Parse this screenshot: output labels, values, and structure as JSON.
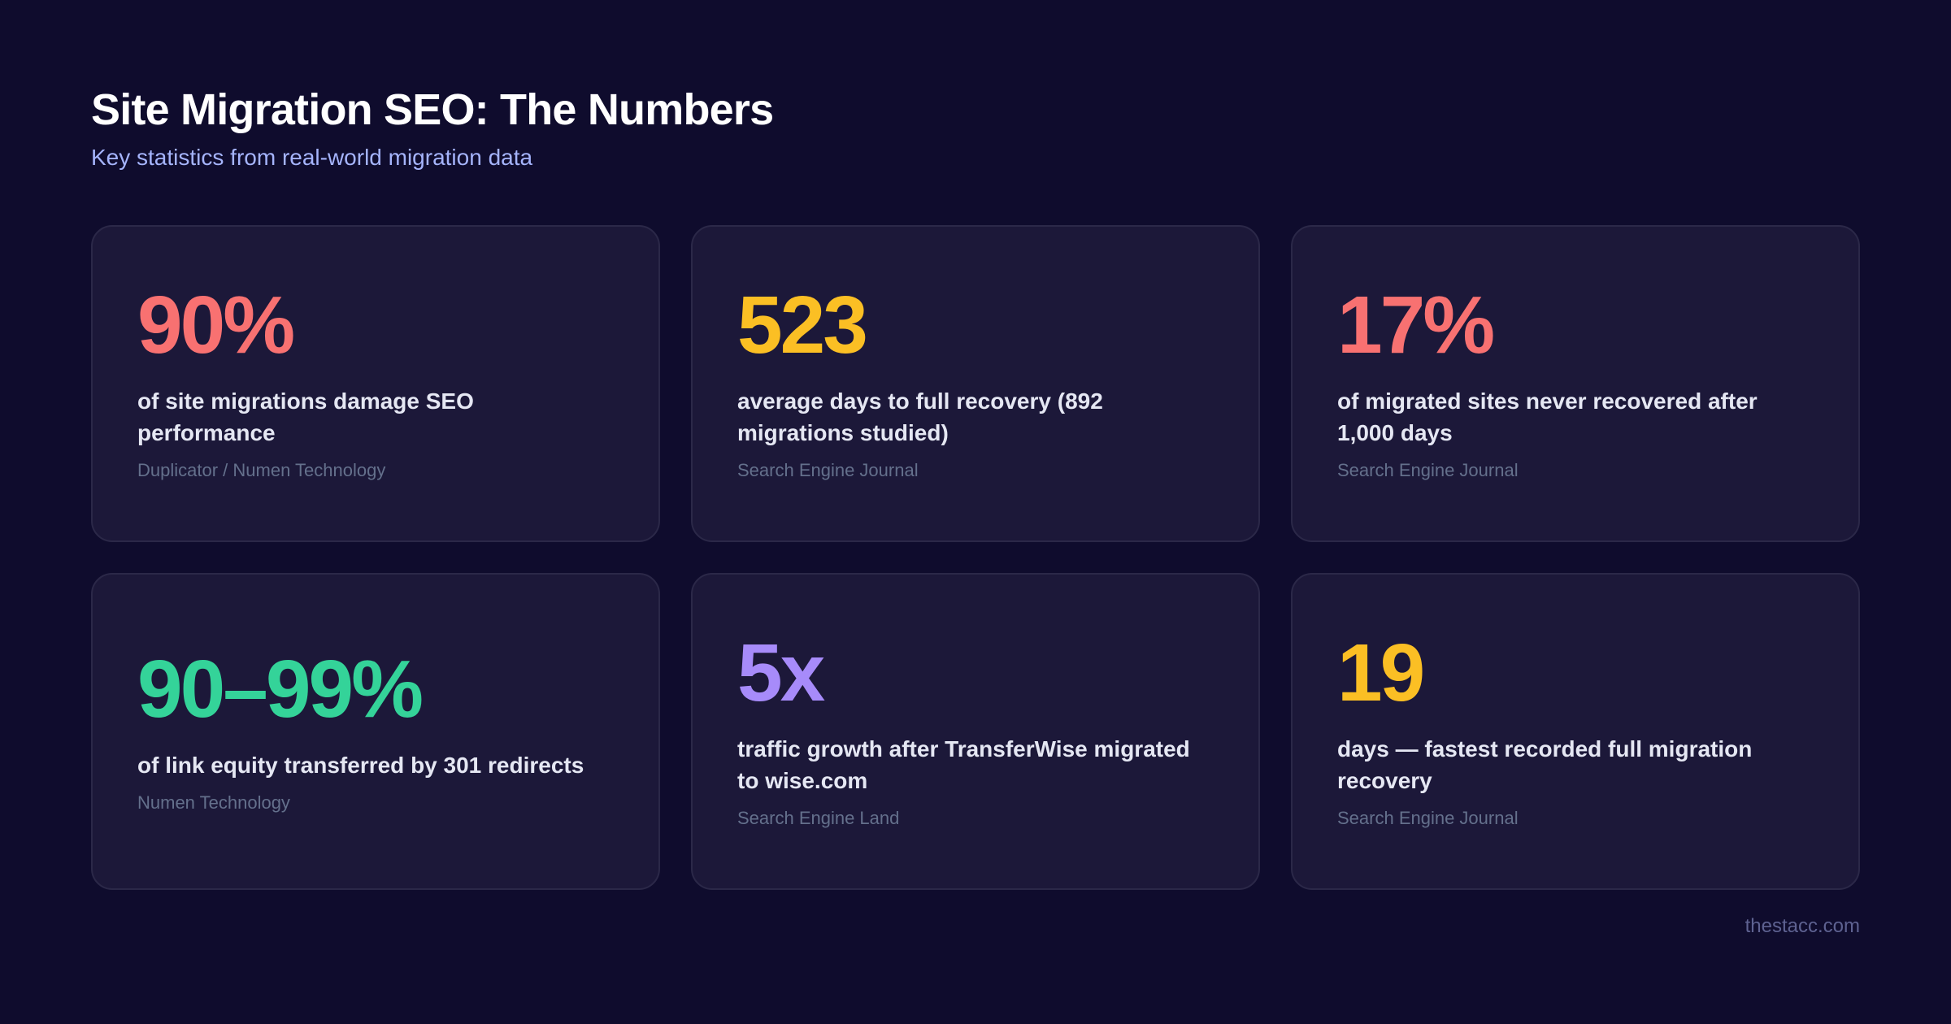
{
  "header": {
    "title": "Site Migration SEO: The Numbers",
    "subtitle": "Key statistics from real-world migration data"
  },
  "colors": {
    "background": "#0f0c2d",
    "card": "#1c1839",
    "red": "#f87171",
    "yellow": "#fbbf24",
    "green": "#34d399",
    "purple": "#a78bfa",
    "subtitle": "#a5b4fc"
  },
  "stats": [
    {
      "value": "90%",
      "description": "of site migrations damage SEO performance",
      "source": "Duplicator / Numen Technology",
      "color": "#f87171"
    },
    {
      "value": "523",
      "description": "average days to full recovery (892 migrations studied)",
      "source": "Search Engine Journal",
      "color": "#fbbf24"
    },
    {
      "value": "17%",
      "description": "of migrated sites never recovered after 1,000 days",
      "source": "Search Engine Journal",
      "color": "#f87171"
    },
    {
      "value": "90–99%",
      "description": "of link equity transferred by 301 redirects",
      "source": "Numen Technology",
      "color": "#34d399"
    },
    {
      "value": "5x",
      "description": "traffic growth after TransferWise migrated to wise.com",
      "source": "Search Engine Land",
      "color": "#a78bfa"
    },
    {
      "value": "19",
      "description": "days — fastest recorded full migration recovery",
      "source": "Search Engine Journal",
      "color": "#fbbf24"
    }
  ],
  "footer": {
    "brand": "thestacc.com"
  }
}
